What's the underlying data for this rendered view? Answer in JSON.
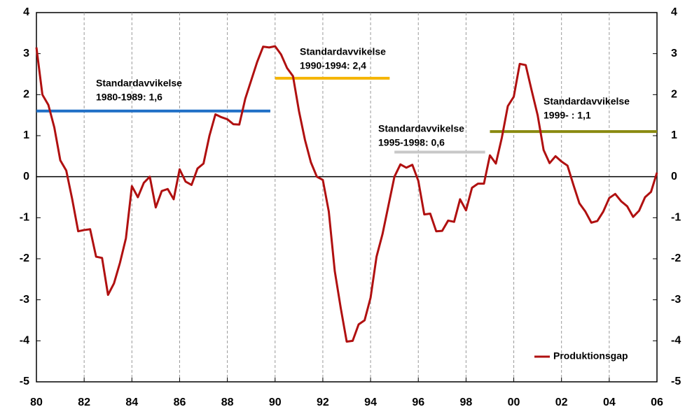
{
  "chart_data": {
    "type": "line",
    "x": [
      1980,
      1980.25,
      1980.5,
      1980.75,
      1981,
      1981.25,
      1981.5,
      1981.75,
      1982,
      1982.25,
      1982.5,
      1982.75,
      1983,
      1983.25,
      1983.5,
      1983.75,
      1984,
      1984.25,
      1984.5,
      1984.75,
      1985,
      1985.25,
      1985.5,
      1985.75,
      1986,
      1986.25,
      1986.5,
      1986.75,
      1987,
      1987.25,
      1987.5,
      1987.75,
      1988,
      1988.25,
      1988.5,
      1988.75,
      1989,
      1989.25,
      1989.5,
      1989.75,
      1990,
      1990.25,
      1990.5,
      1990.75,
      1991,
      1991.25,
      1991.5,
      1991.75,
      1992,
      1992.25,
      1992.5,
      1992.75,
      1993,
      1993.25,
      1993.5,
      1993.75,
      1994,
      1994.25,
      1994.5,
      1994.75,
      1995,
      1995.25,
      1995.5,
      1995.75,
      1996,
      1996.25,
      1996.5,
      1996.75,
      1997,
      1997.25,
      1997.5,
      1997.75,
      1998,
      1998.25,
      1998.5,
      1998.75,
      1999,
      1999.25,
      1999.5,
      1999.75,
      2000,
      2000.25,
      2000.5,
      2000.75,
      2001,
      2001.25,
      2001.5,
      2001.75,
      2002,
      2002.25,
      2002.5,
      2002.75,
      2003,
      2003.25,
      2003.5,
      2003.75,
      2004,
      2004.25,
      2004.5,
      2004.75,
      2005,
      2005.25,
      2005.5,
      2005.75,
      2006
    ],
    "series": [
      {
        "name": "Produktionsgap",
        "color": "#b01010",
        "values": [
          3.15,
          2.0,
          1.75,
          1.2,
          0.4,
          0.15,
          -0.55,
          -1.33,
          -1.3,
          -1.28,
          -1.95,
          -1.98,
          -2.88,
          -2.6,
          -2.1,
          -1.5,
          -0.23,
          -0.5,
          -0.15,
          0.0,
          -0.75,
          -0.35,
          -0.3,
          -0.55,
          0.18,
          -0.12,
          -0.2,
          0.2,
          0.32,
          1.0,
          1.52,
          1.45,
          1.4,
          1.28,
          1.27,
          1.9,
          2.35,
          2.8,
          3.17,
          3.15,
          3.18,
          2.98,
          2.65,
          2.45,
          1.6,
          0.9,
          0.35,
          0.0,
          -0.08,
          -0.85,
          -2.3,
          -3.2,
          -4.02,
          -4.0,
          -3.6,
          -3.5,
          -2.95,
          -1.95,
          -1.4,
          -0.7,
          0.0,
          0.3,
          0.22,
          0.29,
          -0.1,
          -0.92,
          -0.9,
          -1.33,
          -1.32,
          -1.07,
          -1.1,
          -0.55,
          -0.82,
          -0.27,
          -0.17,
          -0.17,
          0.52,
          0.32,
          0.95,
          1.72,
          1.95,
          2.75,
          2.72,
          2.1,
          1.5,
          0.65,
          0.33,
          0.5,
          0.37,
          0.27,
          -0.2,
          -0.65,
          -0.85,
          -1.12,
          -1.08,
          -0.85,
          -0.52,
          -0.42,
          -0.6,
          -0.72,
          -0.98,
          -0.83,
          -0.5,
          -0.37,
          0.1
        ]
      }
    ],
    "std_lines": [
      {
        "text": [
          "Standardavvikelse",
          "1980-1989: 1,6"
        ],
        "value": 1.6,
        "x": [
          1980,
          1989.8
        ],
        "color": "#1f6fc6"
      },
      {
        "text": [
          "Standardavvikelse",
          "1990-1994: 2,4"
        ],
        "value": 2.4,
        "x": [
          1990,
          1994.8
        ],
        "color": "#f5b400"
      },
      {
        "text": [
          "Standardavvikelse",
          "1995-1998: 0,6"
        ],
        "value": 0.6,
        "x": [
          1995,
          1998.8
        ],
        "color": "#c8c8c8"
      },
      {
        "text": [
          "Standardavvikelse",
          "1999- : 1,1"
        ],
        "value": 1.1,
        "x": [
          1999,
          2006
        ],
        "color": "#8a8a10"
      }
    ],
    "xlim": [
      1980,
      2006
    ],
    "xticks": [
      {
        "value": 1980,
        "label": "80"
      },
      {
        "value": 1982,
        "label": "82"
      },
      {
        "value": 1984,
        "label": "84"
      },
      {
        "value": 1986,
        "label": "86"
      },
      {
        "value": 1988,
        "label": "88"
      },
      {
        "value": 1990,
        "label": "90"
      },
      {
        "value": 1992,
        "label": "92"
      },
      {
        "value": 1994,
        "label": "94"
      },
      {
        "value": 1996,
        "label": "96"
      },
      {
        "value": 1998,
        "label": "98"
      },
      {
        "value": 2000,
        "label": "00"
      },
      {
        "value": 2002,
        "label": "02"
      },
      {
        "value": 2004,
        "label": "04"
      },
      {
        "value": 2006,
        "label": "06"
      }
    ],
    "ylim": [
      -5,
      4
    ],
    "yticks": [
      -5,
      -4,
      -3,
      -2,
      -1,
      0,
      1,
      2,
      3,
      4
    ],
    "legend": "bottom-right",
    "grid": true
  }
}
